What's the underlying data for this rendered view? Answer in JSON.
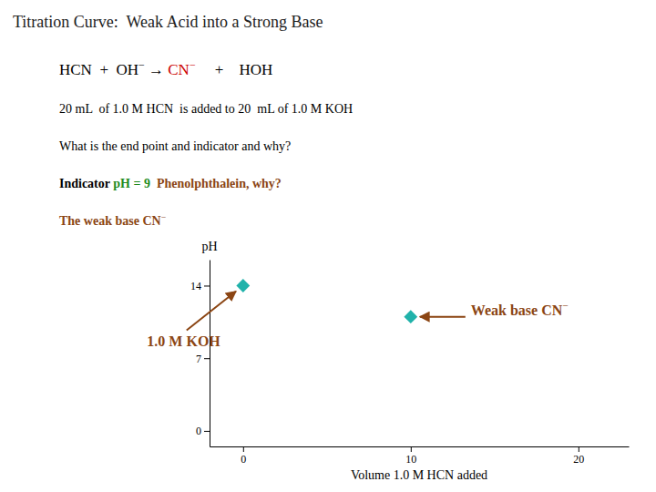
{
  "chart_data": {
    "type": "scatter",
    "title": "Titration Curve:  Weak Acid into a Strong Base",
    "annotations": [
      [
        {
          "text": "HCN  +  OH",
          "color": "#000000"
        },
        {
          "text": "−",
          "color": "#000000",
          "superscript": true
        },
        {
          "text": " → ",
          "color": "#000000"
        },
        {
          "text": "CN",
          "color": "#CC0000"
        },
        {
          "text": "−",
          "color": "#CC0000",
          "superscript": true
        },
        {
          "text": "     +    HOH",
          "color": "#000000"
        }
      ],
      [
        {
          "text": "20 mL  of 1.0 M HCN  is added to 20  mL of 1.0 M KOH",
          "color": "#000000"
        }
      ],
      [
        {
          "text": "What is the end point and indicator and why?",
          "color": "#000000"
        }
      ],
      [
        {
          "text": "Indicator ",
          "color": "#000000",
          "bold": true
        },
        {
          "text": "pH = 9",
          "color": "#228B22",
          "bold": true
        },
        {
          "text": "  Phenolphthalein, why?",
          "color": "#8B4513",
          "bold": true
        }
      ],
      [
        {
          "text": "The weak base CN",
          "color": "#8B4513",
          "bold": true
        },
        {
          "text": "−",
          "color": "#8B4513",
          "superscript": true
        }
      ]
    ],
    "x": [
      0,
      10
    ],
    "values": [
      14,
      11
    ],
    "color": "#20B2AA",
    "marker": "diamond",
    "point_annotations": [
      [
        {
          "text": "1.0 M KOH",
          "color": "#8B4513",
          "bold": true
        }
      ],
      [
        {
          "text": "Weak base CN",
          "color": "#8B4513",
          "bold": true
        },
        {
          "text": "−",
          "color": "#8B4513",
          "superscript": true
        }
      ]
    ],
    "x_label": "Volume 1.0 M HCN added",
    "y_label": "pH",
    "xlim": [
      -2,
      23
    ],
    "ylim": [
      -1.5,
      16.5
    ],
    "xticks": [
      0,
      10,
      20
    ],
    "yticks": [
      0,
      7,
      14
    ]
  }
}
